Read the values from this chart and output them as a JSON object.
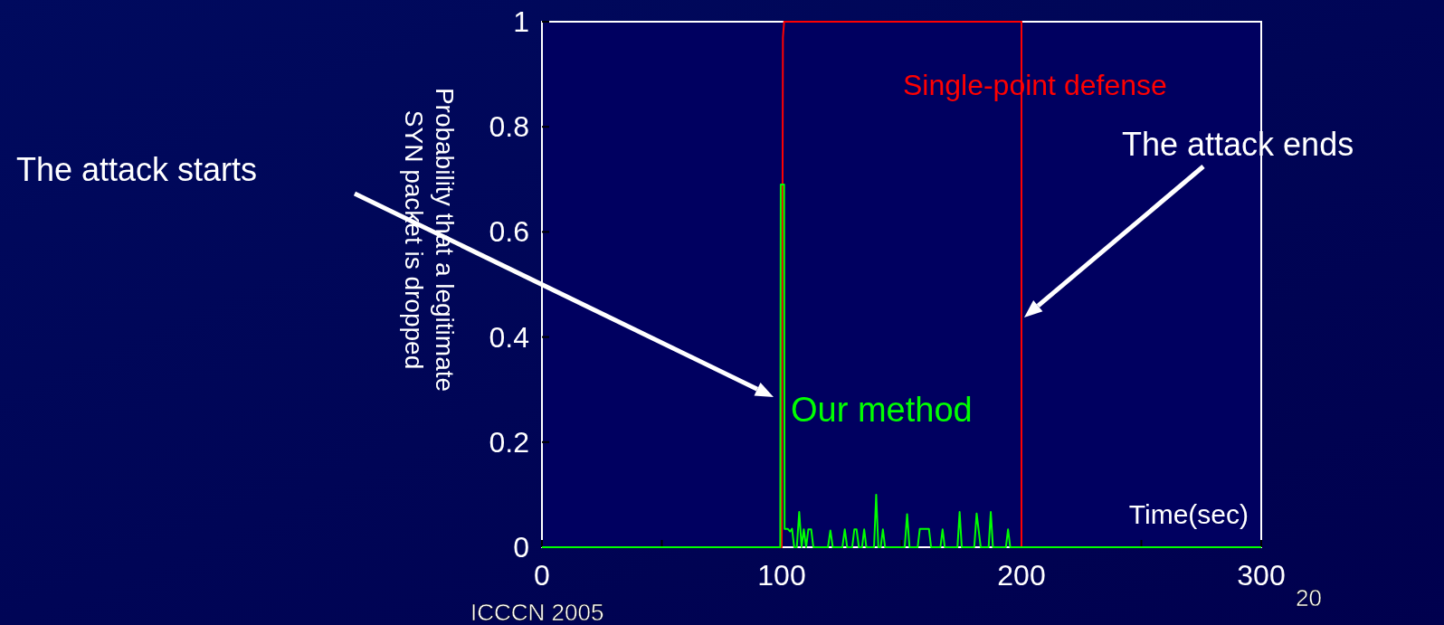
{
  "chart_data": {
    "type": "line",
    "xlabel": "Time(sec)",
    "ylabel": "Probability that a legitimate\nSYN packet is dropped",
    "xlim": [
      0,
      300
    ],
    "ylim": [
      0,
      1
    ],
    "xticks": [
      0,
      {
        "value": 50,
        "label": null
      },
      100,
      {
        "value": 150,
        "label": null
      },
      200,
      {
        "value": 250,
        "label": null
      },
      300
    ],
    "yticks": [
      0,
      0.2,
      0.4,
      0.6,
      0.8,
      1
    ],
    "grid": false,
    "marker": "none",
    "line_style": "solid",
    "series": [
      {
        "name": "Single-point defense",
        "color": "#ff0000",
        "x": [
          0,
          100,
          100.5,
          101,
          200,
          200,
          300
        ],
        "values": [
          0,
          0,
          0.97,
          1,
          1,
          0,
          0
        ]
      },
      {
        "name": "Our method",
        "color": "#00ff00",
        "x": [
          0,
          99.4,
          99.6,
          101,
          101.2,
          102.5,
          103.5,
          104.3,
          105.2,
          106.3,
          107.3,
          108.3,
          109.2,
          110.2,
          111.1,
          112.3,
          113.2,
          119.3,
          120.3,
          121.3,
          125.3,
          126.3,
          127.3,
          129.4,
          130.3,
          131.2,
          132.2,
          133.5,
          134.4,
          135.3,
          138.5,
          139.4,
          140.3,
          141.3,
          142.2,
          143.1,
          151.3,
          152.3,
          153.3,
          156.7,
          157.6,
          161.4,
          162.3,
          166.2,
          167.1,
          168,
          173.3,
          174.2,
          175.1,
          180.3,
          181.3,
          183,
          186.3,
          187.2,
          188.1,
          193.5,
          194.4,
          195.3,
          300
        ],
        "values": [
          0,
          0,
          0.69,
          0.69,
          0.035,
          0.035,
          0.03,
          0.035,
          0,
          0,
          0.067,
          0,
          0.034,
          0,
          0.034,
          0.034,
          0,
          0,
          0.032,
          0,
          0,
          0.034,
          0,
          0,
          0.034,
          0.034,
          0,
          0,
          0.034,
          0,
          0,
          0.1,
          0,
          0,
          0.034,
          0,
          0,
          0.063,
          0,
          0,
          0.035,
          0.035,
          0,
          0,
          0.034,
          0,
          0,
          0.067,
          0,
          0,
          0.064,
          0,
          0,
          0.067,
          0,
          0,
          0.034,
          0,
          0
        ]
      }
    ],
    "annotations": [
      "The attack starts",
      "The attack ends",
      "ICCCN 2005",
      "20"
    ]
  }
}
